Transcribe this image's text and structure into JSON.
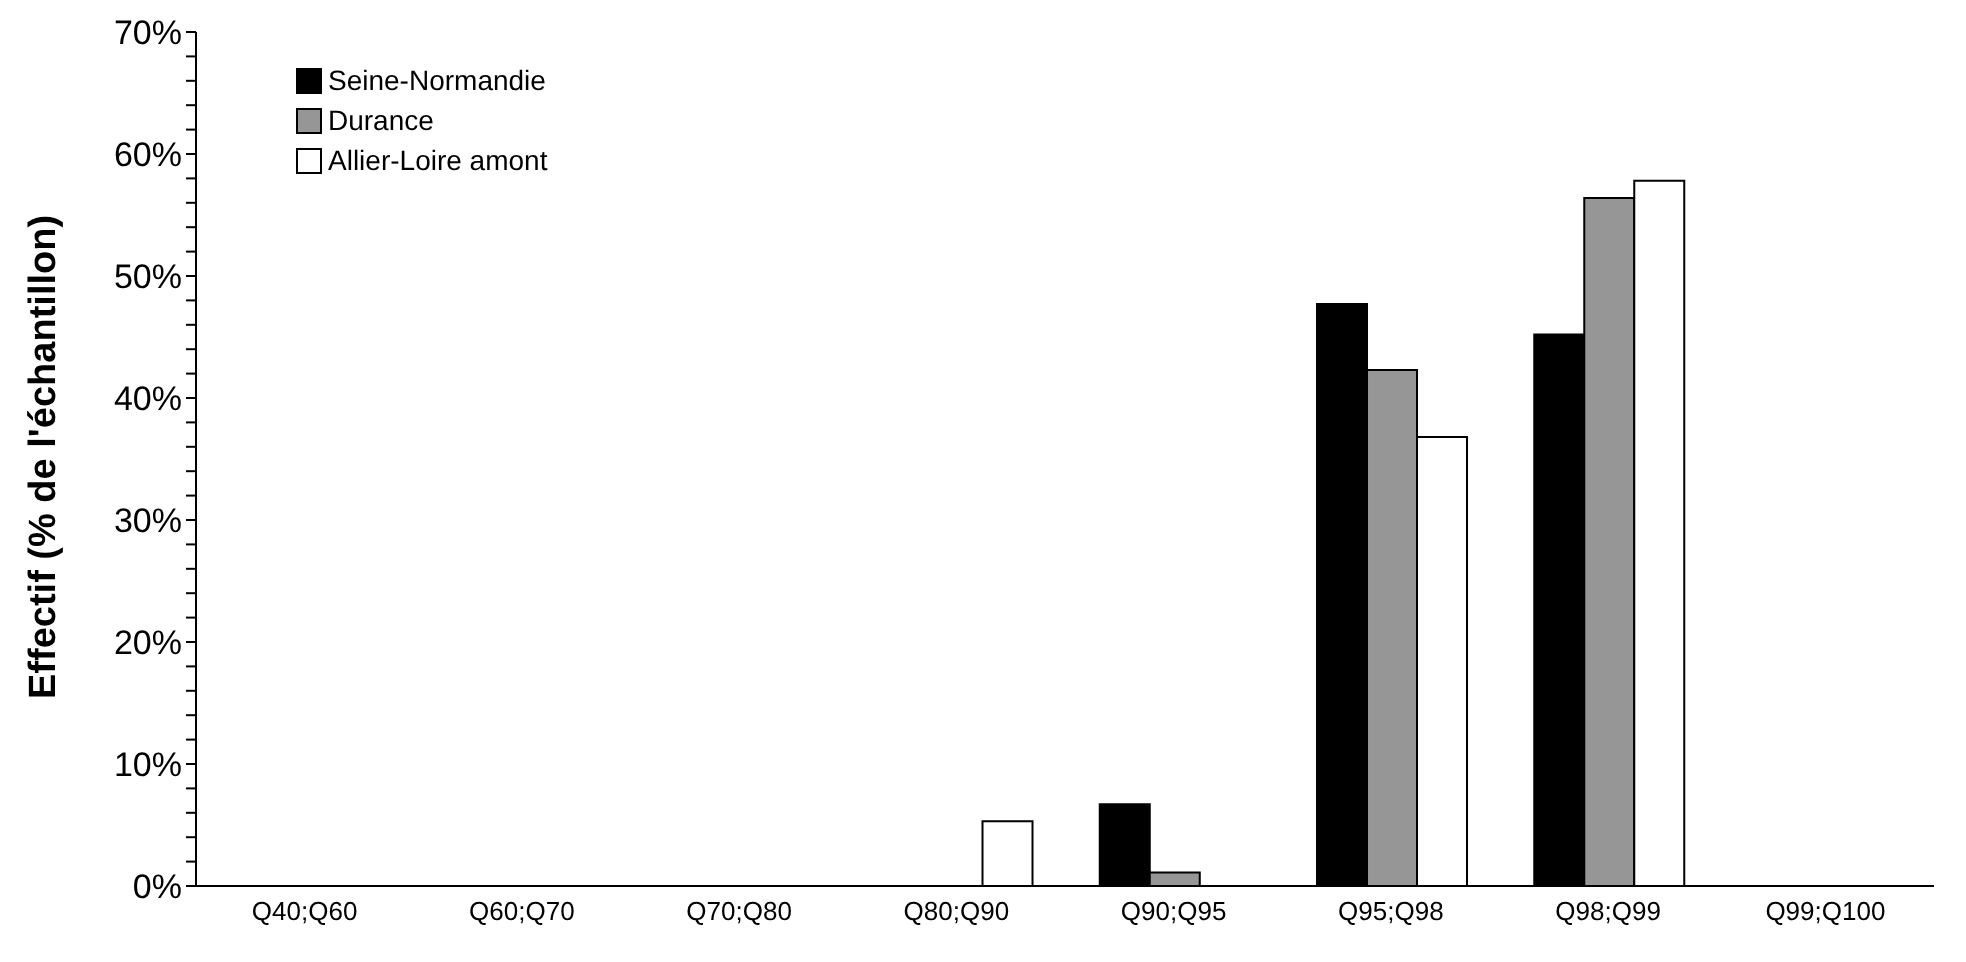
{
  "chart_data": {
    "type": "bar",
    "ylabel": "Effectif (% de l'échantillon)",
    "categories": [
      "Q40;Q60",
      "Q60;Q70",
      "Q70;Q80",
      "Q80;Q90",
      "Q90;Q95",
      "Q95;Q98",
      "Q98;Q99",
      "Q99;Q100"
    ],
    "series": [
      {
        "name": "Seine-Normandie",
        "color": "#000000",
        "values": [
          0,
          0,
          0,
          0,
          6.7,
          47.7,
          45.2,
          0
        ]
      },
      {
        "name": "Durance",
        "color": "#969696",
        "values": [
          0,
          0,
          0,
          0,
          1.1,
          42.3,
          56.4,
          0
        ]
      },
      {
        "name": "Allier-Loire amont",
        "color": "#ffffff",
        "values": [
          0,
          0,
          0,
          5.3,
          0,
          36.8,
          57.8,
          0
        ]
      }
    ],
    "ylim": [
      0,
      70
    ],
    "yticks": [
      {
        "value": 0,
        "label": "0%"
      },
      {
        "value": 2,
        "label": null
      },
      {
        "value": 4,
        "label": null
      },
      {
        "value": 6,
        "label": null
      },
      {
        "value": 8,
        "label": null
      },
      {
        "value": 10,
        "label": "10%"
      },
      {
        "value": 12,
        "label": null
      },
      {
        "value": 14,
        "label": null
      },
      {
        "value": 16,
        "label": null
      },
      {
        "value": 18,
        "label": null
      },
      {
        "value": 20,
        "label": "20%"
      },
      {
        "value": 22,
        "label": null
      },
      {
        "value": 24,
        "label": null
      },
      {
        "value": 26,
        "label": null
      },
      {
        "value": 28,
        "label": null
      },
      {
        "value": 30,
        "label": "30%"
      },
      {
        "value": 32,
        "label": null
      },
      {
        "value": 34,
        "label": null
      },
      {
        "value": 36,
        "label": null
      },
      {
        "value": 38,
        "label": null
      },
      {
        "value": 40,
        "label": "40%"
      },
      {
        "value": 42,
        "label": null
      },
      {
        "value": 44,
        "label": null
      },
      {
        "value": 46,
        "label": null
      },
      {
        "value": 48,
        "label": null
      },
      {
        "value": 50,
        "label": "50%"
      },
      {
        "value": 52,
        "label": null
      },
      {
        "value": 54,
        "label": null
      },
      {
        "value": 56,
        "label": null
      },
      {
        "value": 58,
        "label": null
      },
      {
        "value": 60,
        "label": "60%"
      },
      {
        "value": 62,
        "label": null
      },
      {
        "value": 64,
        "label": null
      },
      {
        "value": 66,
        "label": null
      },
      {
        "value": 68,
        "label": null
      },
      {
        "value": 70,
        "label": "70%"
      }
    ],
    "grid": false,
    "legend": "top left"
  }
}
